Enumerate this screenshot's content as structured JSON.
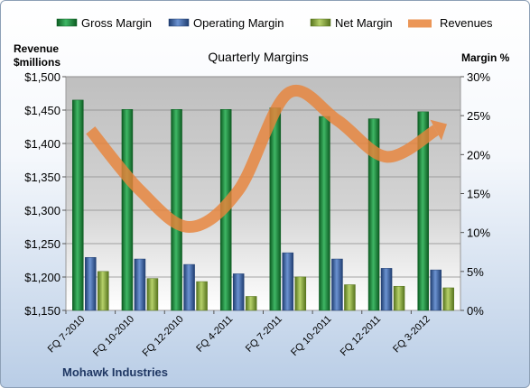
{
  "chart_data": {
    "type": "bar",
    "title": "Quarterly Margins",
    "footer": "Mohawk Industries",
    "y_left_label": [
      "Revenue",
      "$millions"
    ],
    "y_right_label": "Margin %",
    "y_left_ticks": [
      "$1,150",
      "$1,200",
      "$1,250",
      "$1,300",
      "$1,350",
      "$1,400",
      "$1,450",
      "$1,500"
    ],
    "y_right_ticks": [
      "0%",
      "5%",
      "10%",
      "15%",
      "20%",
      "25%",
      "30%"
    ],
    "y_left_range": [
      1150,
      1500
    ],
    "y_right_range": [
      0,
      30
    ],
    "categories": [
      "FQ 7-2010",
      "FQ 10-2010",
      "FQ 12-2010",
      "FQ 4-2011",
      "FQ 7-2011",
      "FQ 10-2011",
      "FQ 12-2011",
      "FQ 3-2012"
    ],
    "legend": [
      "Gross Margin",
      "Operating Margin",
      "Net Margin",
      "Revenues"
    ],
    "series": [
      {
        "name": "Gross Margin",
        "axis": "right",
        "kind": "bar",
        "color": "#1e8a3e",
        "values": [
          27.0,
          25.8,
          25.8,
          25.8,
          26.0,
          24.9,
          24.6,
          25.5
        ]
      },
      {
        "name": "Operating Margin",
        "axis": "right",
        "kind": "bar",
        "color": "#3d65a8",
        "values": [
          6.8,
          6.6,
          5.9,
          4.7,
          7.4,
          6.6,
          5.4,
          5.2
        ]
      },
      {
        "name": "Net Margin",
        "axis": "right",
        "kind": "bar",
        "color": "#8aaa3c",
        "values": [
          5.0,
          4.1,
          3.7,
          1.8,
          4.3,
          3.3,
          3.1,
          2.9
        ]
      },
      {
        "name": "Revenues",
        "axis": "left",
        "kind": "line",
        "color": "#e8843a",
        "values": [
          1420,
          1330,
          1275,
          1330,
          1475,
          1435,
          1380,
          1420
        ]
      }
    ],
    "grid": true,
    "legend_position": "top"
  }
}
